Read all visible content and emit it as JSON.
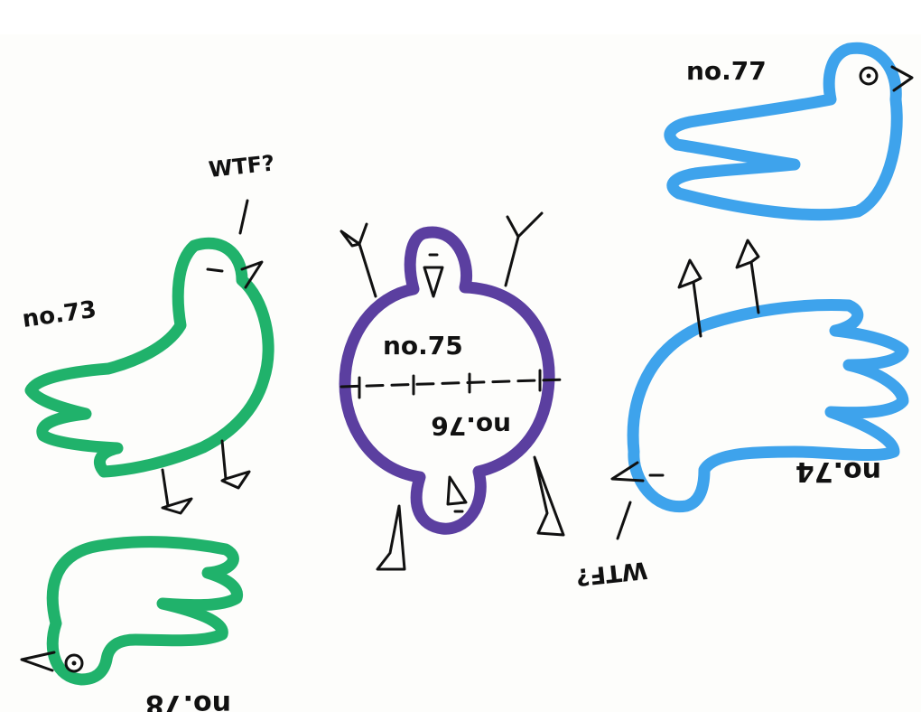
{
  "colors": {
    "paper": "#fdfdfb",
    "ink": "#111111",
    "green": "#20b26b",
    "purple": "#5b3fa0",
    "blue": "#3ea3ec"
  },
  "labels": {
    "bird_73": "no.73",
    "bird_73_exclaim": "WTF?",
    "bird_75": "no.75",
    "bird_76": "no.76",
    "bird_77": "no.77",
    "bird_74": "no.74",
    "bird_74_exclaim": "WTF?",
    "bird_78": "no.78"
  }
}
